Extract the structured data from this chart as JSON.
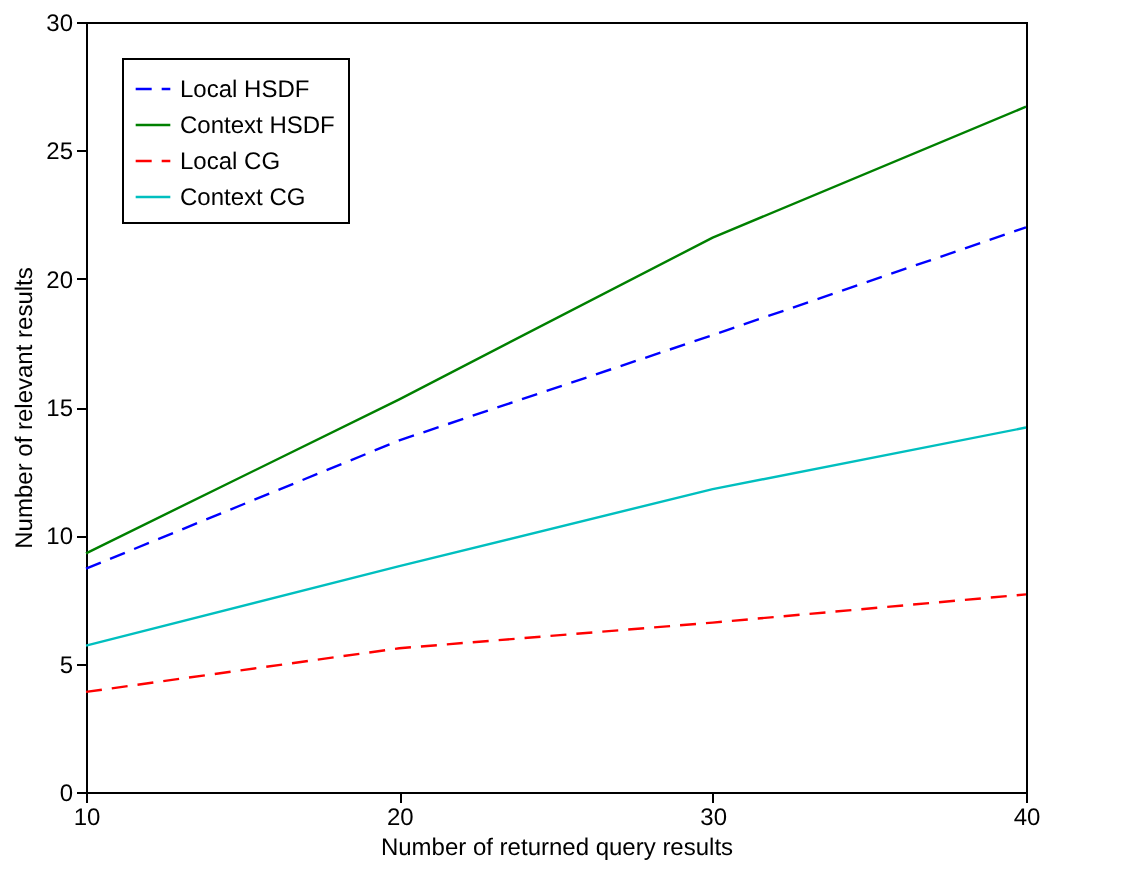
{
  "chart_data": {
    "type": "line",
    "xlabel": "Number of returned query results",
    "ylabel": "Number of relevant results",
    "x": [
      10,
      20,
      30,
      40
    ],
    "series": [
      {
        "name": "Local HSDF",
        "color": "#0000ff",
        "line_style": "dashed",
        "values": [
          8.7,
          13.7,
          17.8,
          22.0
        ]
      },
      {
        "name": "Context HSDF",
        "color": "#008000",
        "line_style": "solid",
        "values": [
          9.3,
          15.3,
          21.6,
          26.7
        ]
      },
      {
        "name": "Local CG",
        "color": "#ff0000",
        "line_style": "dashed",
        "values": [
          3.9,
          5.6,
          6.6,
          7.7
        ]
      },
      {
        "name": "Context CG",
        "color": "#00bfbf",
        "line_style": "solid",
        "values": [
          5.7,
          8.8,
          11.8,
          14.2
        ]
      }
    ],
    "xlim": [
      10,
      40
    ],
    "xticks": [
      10,
      20,
      30,
      40
    ],
    "ylim": [
      0,
      30
    ],
    "yticks": [
      0,
      5,
      10,
      15,
      20,
      25,
      30
    ],
    "legend": "top left",
    "grid": false,
    "marker": "none"
  }
}
